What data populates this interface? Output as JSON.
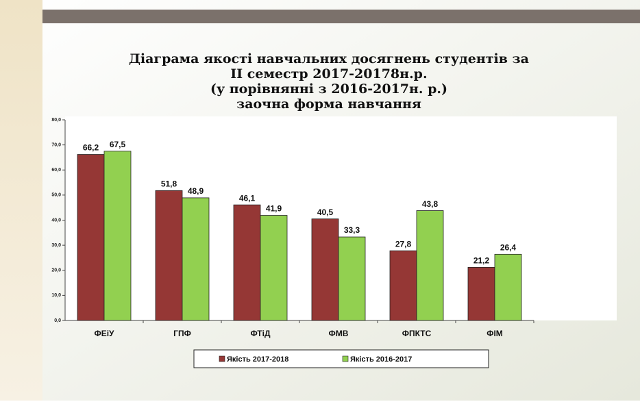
{
  "chart_data": {
    "type": "bar",
    "title": [
      "Діаграма якості навчальних досягнень студентів за",
      "ІІ семестр  2017-20178н.р.",
      "(у порівнянні з 2016-2017н. р.)",
      "заочна форма навчання"
    ],
    "categories": [
      "ФЕіУ",
      "ГПФ",
      "ФТіД",
      "ФМВ",
      "ФПКТС",
      "ФІМ"
    ],
    "series": [
      {
        "name": "Якість 2017-2018",
        "color": "#953735",
        "values": [
          66.2,
          51.8,
          46.1,
          40.5,
          27.8,
          21.2
        ],
        "value_labels": [
          "66,2",
          "51,8",
          "46,1",
          "40,5",
          "27,8",
          "21,2"
        ]
      },
      {
        "name": "Якість 2016-2017",
        "color": "#92d050",
        "values": [
          67.5,
          48.9,
          41.9,
          33.3,
          43.8,
          26.4
        ],
        "value_labels": [
          "67,5",
          "48,9",
          "41,9",
          "33,3",
          "43,8",
          "26,4"
        ]
      }
    ],
    "ylim": [
      0,
      80
    ],
    "yticks": [
      {
        "value": 0,
        "label": "0,0"
      },
      {
        "value": 10,
        "label": "10,0"
      },
      {
        "value": 20,
        "label": "20,0"
      },
      {
        "value": 30,
        "label": "30,0"
      },
      {
        "value": 40,
        "label": "40,0"
      },
      {
        "value": 50,
        "label": "50,0"
      },
      {
        "value": 60,
        "label": "60,0"
      },
      {
        "value": 70,
        "label": "70,0"
      },
      {
        "value": 80,
        "label": "80,0"
      }
    ],
    "legend": "bottom"
  }
}
